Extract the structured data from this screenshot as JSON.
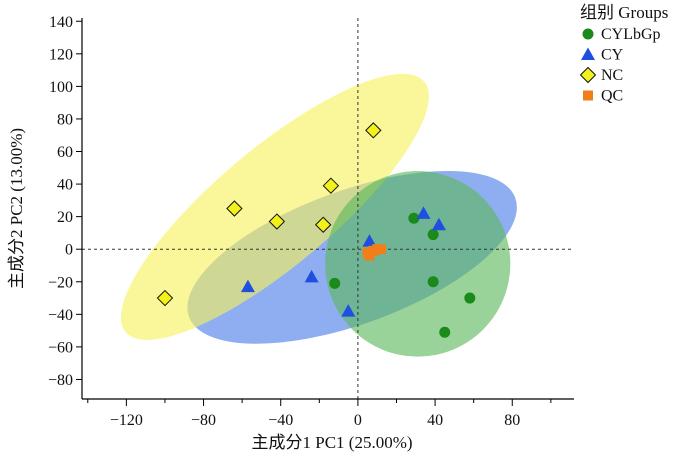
{
  "chart_data": {
    "type": "scatter",
    "title": "",
    "xlabel": "主成分1 PC1 (25.00%)",
    "ylabel": "主成分2 PC2 (13.00%)",
    "xlim": [
      -143,
      112
    ],
    "ylim": [
      -92,
      142
    ],
    "xticks": [
      -120,
      -80,
      -40,
      0,
      40,
      80
    ],
    "yticks": [
      -80,
      -60,
      -40,
      -20,
      0,
      20,
      40,
      60,
      80,
      100,
      120,
      140
    ],
    "xtick_labels": [
      "−120",
      "−80",
      "−40",
      "0",
      "40",
      "80"
    ],
    "ytick_labels": [
      "−80",
      "−60",
      "−40",
      "−20",
      "0",
      "20",
      "40",
      "60",
      "80",
      "100",
      "120",
      "140"
    ],
    "reference_lines": {
      "x": 0,
      "y": 0,
      "style": "dotted"
    },
    "legend": {
      "title": "组别 Groups",
      "position": "top-right"
    },
    "series": [
      {
        "name": "CYLbGp",
        "marker": "circle",
        "color": "#1a8a1a",
        "ellipse_color": "#5cb85c",
        "points": [
          [
            29,
            19
          ],
          [
            39,
            9
          ],
          [
            -12,
            -21
          ],
          [
            39,
            -20
          ],
          [
            58,
            -30
          ],
          [
            45,
            -51
          ]
        ],
        "ellipse": {
          "cx": 31,
          "cy": -9,
          "rx": 48,
          "ry": 57,
          "angle_deg": 0
        }
      },
      {
        "name": "CY",
        "marker": "triangle",
        "color": "#1f4fe0",
        "ellipse_color": "#4a7de8",
        "points": [
          [
            34,
            22
          ],
          [
            42,
            15
          ],
          [
            6,
            5
          ],
          [
            -57,
            -23
          ],
          [
            -24,
            -17
          ],
          [
            -5,
            -38
          ]
        ],
        "ellipse": {
          "cx": -3,
          "cy": -5,
          "rx": 90,
          "ry": 41,
          "angle_deg": 20
        }
      },
      {
        "name": "NC",
        "marker": "diamond",
        "color": "#f2f21a",
        "ellipse_color": "#f5f25a",
        "points": [
          [
            8,
            73
          ],
          [
            -14,
            39
          ],
          [
            -64,
            25
          ],
          [
            -42,
            17
          ],
          [
            -18,
            15
          ],
          [
            -100,
            -30
          ]
        ],
        "ellipse": {
          "cx": -43,
          "cy": 26,
          "rx": 101,
          "ry": 36,
          "angle_deg": 40
        }
      },
      {
        "name": "QC",
        "marker": "square",
        "color": "#f07f1a",
        "points": [
          [
            5,
            -2
          ],
          [
            8,
            -1
          ],
          [
            12,
            0
          ],
          [
            6,
            -4
          ],
          [
            10,
            0
          ]
        ]
      }
    ]
  }
}
